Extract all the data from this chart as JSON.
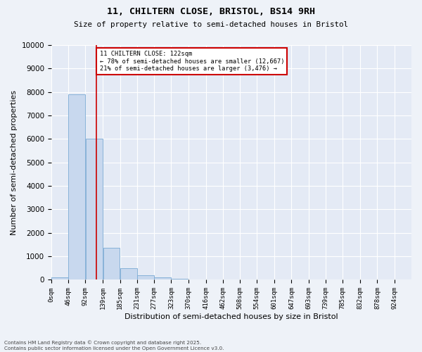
{
  "title_line1": "11, CHILTERN CLOSE, BRISTOL, BS14 9RH",
  "title_line2": "Size of property relative to semi-detached houses in Bristol",
  "xlabel": "Distribution of semi-detached houses by size in Bristol",
  "ylabel": "Number of semi-detached properties",
  "bar_color": "#c8d8ee",
  "bar_edge_color": "#7aaad4",
  "property_value": 122,
  "property_label": "11 CHILTERN CLOSE: 122sqm",
  "pct_smaller": 78,
  "pct_larger": 21,
  "n_smaller": 12667,
  "n_larger": 3476,
  "annotation_box_color": "#cc0000",
  "vline_color": "#cc0000",
  "categories": [
    "0sqm",
    "46sqm",
    "92sqm",
    "139sqm",
    "185sqm",
    "231sqm",
    "277sqm",
    "323sqm",
    "370sqm",
    "416sqm",
    "462sqm",
    "508sqm",
    "554sqm",
    "601sqm",
    "647sqm",
    "693sqm",
    "739sqm",
    "785sqm",
    "832sqm",
    "878sqm",
    "924sqm"
  ],
  "bin_edges": [
    0,
    46,
    92,
    139,
    185,
    231,
    277,
    323,
    370,
    416,
    462,
    508,
    554,
    601,
    647,
    693,
    739,
    785,
    832,
    878,
    924
  ],
  "bar_heights": [
    100,
    7900,
    6000,
    1350,
    490,
    200,
    90,
    40,
    0,
    0,
    0,
    0,
    0,
    0,
    0,
    0,
    0,
    0,
    0,
    0
  ],
  "ylim": [
    0,
    10000
  ],
  "yticks": [
    0,
    1000,
    2000,
    3000,
    4000,
    5000,
    6000,
    7000,
    8000,
    9000,
    10000
  ],
  "footer_line1": "Contains HM Land Registry data © Crown copyright and database right 2025.",
  "footer_line2": "Contains public sector information licensed under the Open Government Licence v3.0.",
  "background_color": "#eef2f8",
  "plot_bg_color": "#e4eaf5"
}
